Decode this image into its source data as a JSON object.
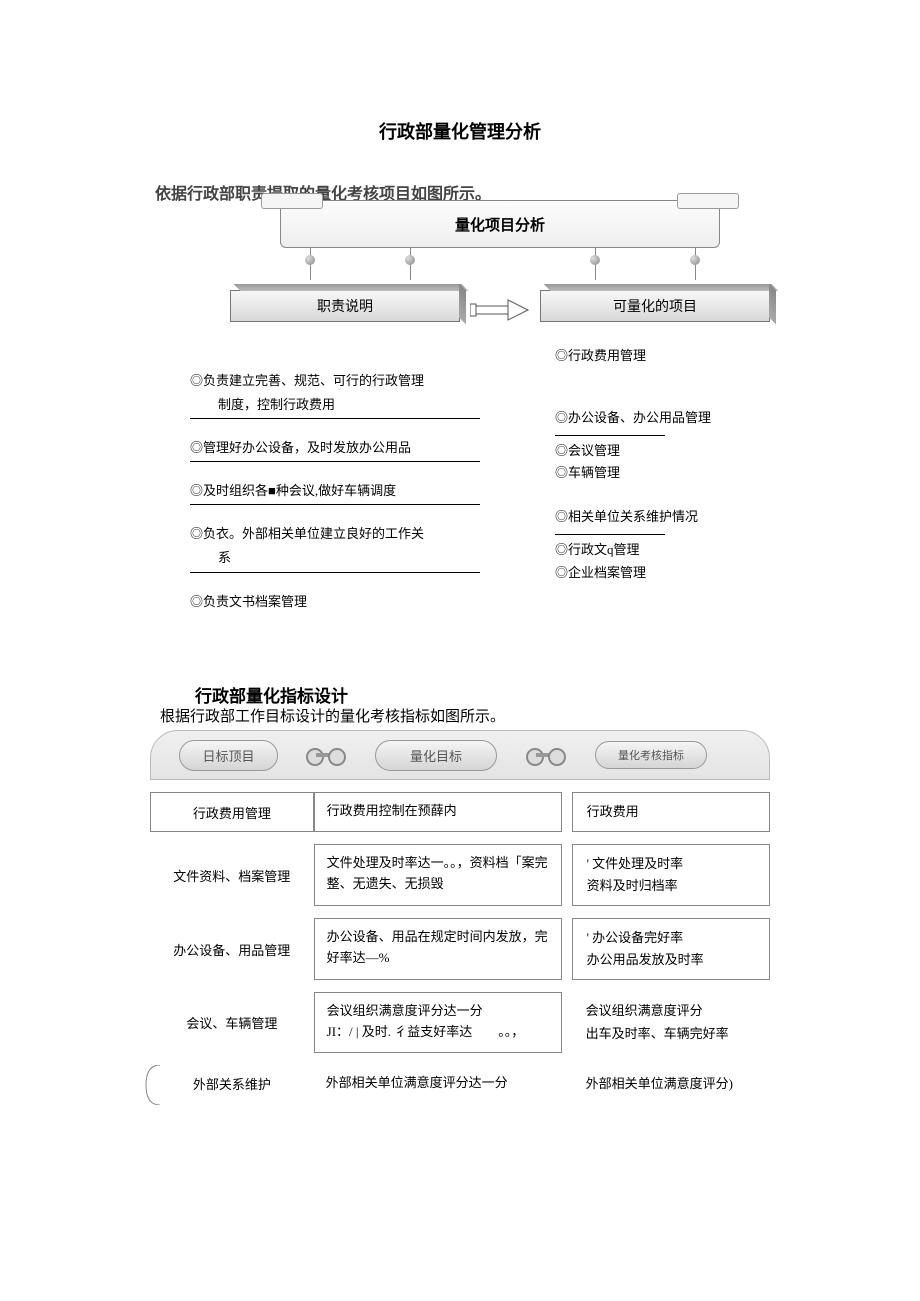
{
  "title": "行政部量化管理分析",
  "intro1": "依据行政部职责提取的量化考核项目如图所示。",
  "diagram": {
    "banner": "量化项目分析",
    "left_box": "职责说明",
    "right_box": "可量化的项目"
  },
  "left_items": [
    {
      "text": "◎负责建立完善、规范、可行的行政管理",
      "sub": "制度，控制行政费用",
      "rule": true
    },
    {
      "text": "◎管理好办公设备，及时发放办公用品",
      "rule": true
    },
    {
      "text": "◎及时组织各■种会议,做好车辆调度",
      "rule": true
    },
    {
      "text": "◎负衣。外部相关单位建立良好的工作关",
      "sub": "系",
      "rule": true
    },
    {
      "text": "◎负责文书档案管理",
      "rule": false
    }
  ],
  "right_items": [
    "◎行政费用管理",
    "",
    "◎办公设备、办公用品管理",
    "short-rule",
    "◎会议管理",
    "◎车辆管理",
    "",
    "◎相关单位关系维护情况",
    "short-rule",
    "◎行政文q管理",
    "◎企业档案管理"
  ],
  "section2_title": "行政部量化指标设计",
  "intro2": "根据行政部工作目标设计的量化考核指标如图所示。",
  "table": {
    "headers": [
      "日标顶目",
      "量化目标",
      "量化考核指标"
    ],
    "rows": [
      {
        "c1": "行政费用管理",
        "c2": "行政费用控制在预薛内",
        "c3": "行政费用",
        "box_c1": true,
        "box_c2": true,
        "box_c3": true
      },
      {
        "c1": "文件资料、档案管理",
        "c2": "文件处理及时率达一。。，资料档「案完整、无遗失、无损毁",
        "c3": "' 文件处理及时率\n资料及时归档率",
        "box_c2": true,
        "box_c3": true
      },
      {
        "c1": "办公设备、用品管理",
        "c2": "办公设备、用品在规定时间内发放，完好率达—%",
        "c3": "' 办公设备完好率\n办公用品发放及时率",
        "box_c2": true,
        "box_c3": true
      },
      {
        "c1": "会议、车辆管理",
        "c2": "会议组织满意度评分达一分\nJI：/ | 及时. 彳益支好率达　　。。，",
        "c3": "会议组织满意度评分\n出车及时率、车辆完好率",
        "box_c2": true
      },
      {
        "c1": "外部关系维护",
        "c2": "外部相关单位满意度评分达一分",
        "c3": "外部相关单位满意度评分)",
        "brace": true
      }
    ]
  }
}
